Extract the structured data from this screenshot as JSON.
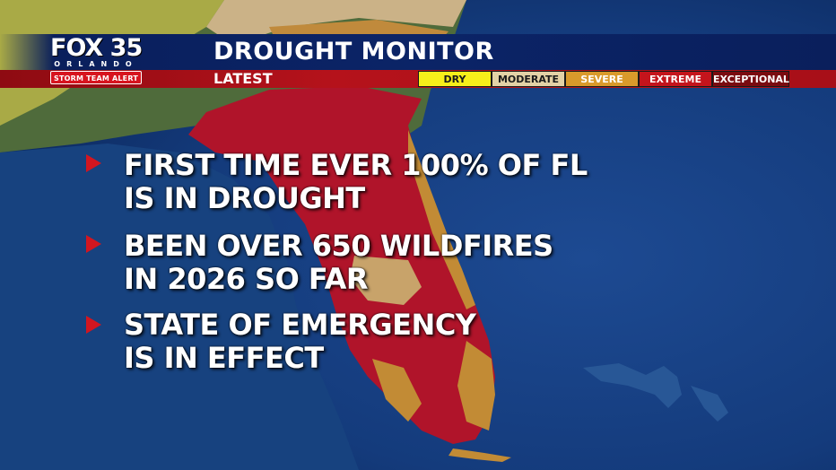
{
  "broadcast": {
    "station": "FOX 35",
    "city": "ORLANDO",
    "alert_tag": "STORM TEAM ALERT",
    "title": "DROUGHT MONITOR",
    "subtitle": "LATEST"
  },
  "legend": [
    {
      "label": "DRY",
      "bg": "#f7ef1a",
      "fg": "#1a1a1a"
    },
    {
      "label": "MODERATE",
      "bg": "#e3d2a6",
      "fg": "#1a1a1a"
    },
    {
      "label": "SEVERE",
      "bg": "#d99a2b",
      "fg": "#ffffff"
    },
    {
      "label": "EXTREME",
      "bg": "#c4141c",
      "fg": "#ffffff"
    },
    {
      "label": "EXCEPTIONAL",
      "bg": "#7a0b10",
      "fg": "#ffffff"
    }
  ],
  "bullets": [
    {
      "text": "FIRST TIME EVER 100% OF FL\nIS IN DROUGHT"
    },
    {
      "text": "BEEN OVER 650 WILDFIRES\nIN 2026 SO FAR"
    },
    {
      "text": "STATE OF EMERGENCY\nIS IN EFFECT"
    }
  ],
  "colors": {
    "ocean": "#123a7a",
    "land": "#4e6a3c",
    "dry": "#b7b64a",
    "moderate": "#cdb98a",
    "severe": "#c28b35",
    "extreme": "#b0142a",
    "header_blue": "#0b2467",
    "header_red": "#b5121b"
  }
}
